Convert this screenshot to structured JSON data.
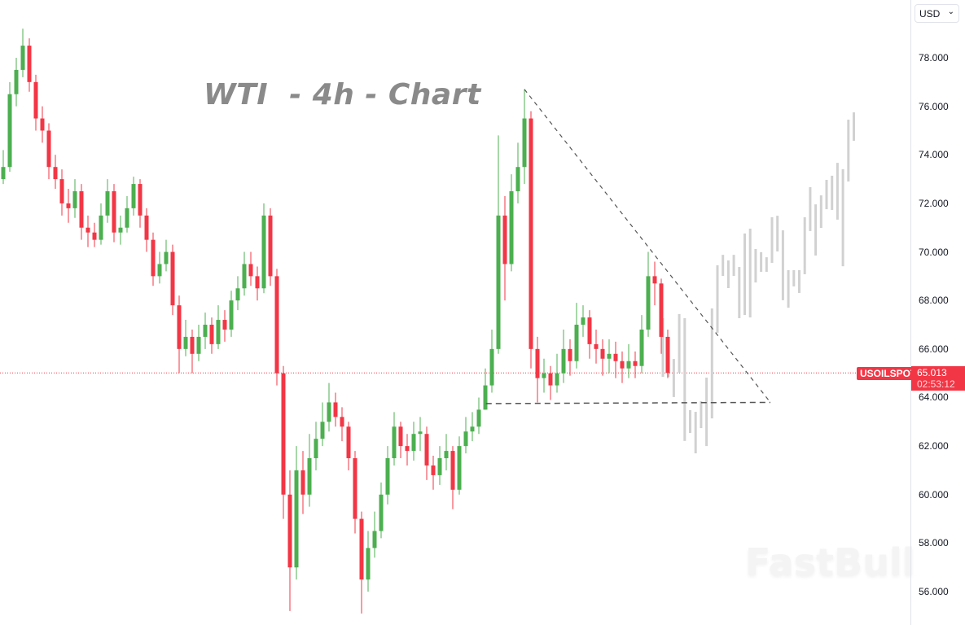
{
  "title": "WTI  - 4h - Chart",
  "watermark": "FastBull",
  "currency_selector": {
    "value": "USD"
  },
  "symbol": "USOILSPOT",
  "last_price": "65.013",
  "countdown": "02:53:12",
  "colors": {
    "up": "#4caf50",
    "down": "#f23645",
    "projection": "#d1d1d1",
    "trendline": "#555555",
    "price_line": "#f23645"
  },
  "chart_data": {
    "type": "candlestick",
    "title": "WTI  - 4h - Chart",
    "ylim": [
      54.8,
      80.4
    ],
    "y_ticks": [
      "78.000",
      "76.000",
      "74.000",
      "72.000",
      "70.000",
      "68.000",
      "66.000",
      "64.000",
      "62.000",
      "60.000",
      "58.000",
      "56.000"
    ],
    "grid": false,
    "last_price": 65.013,
    "open": [
      73.0,
      73.5,
      76.5,
      77.5,
      78.5,
      77,
      75.5,
      75,
      73.5,
      73,
      72,
      71.8,
      72.5,
      71,
      70.8,
      70.5,
      71.5,
      72.5,
      70.8,
      71,
      71.8,
      72.8,
      71.5,
      70.5,
      69,
      69.5,
      70,
      67.8,
      66,
      66.5,
      65.8,
      66.5,
      67,
      66.2,
      67.2,
      66.8,
      68,
      68.5,
      69.5,
      69,
      68.5,
      71.5,
      69,
      65,
      60,
      57,
      61,
      60,
      61.5,
      62.3,
      63,
      63.8,
      63.2,
      62.8,
      61.5,
      59,
      56.5,
      57.8,
      58.5,
      60,
      61.5,
      62.8,
      62,
      61.8,
      62.5,
      62.5,
      61.2,
      60.8,
      61.5,
      61.8,
      60.2,
      62,
      62.6,
      62.8,
      63.5,
      64.5,
      66,
      71.5,
      69.5,
      72.5,
      73.5,
      75.5,
      66,
      64.8,
      65,
      64.5,
      65,
      66,
      65.5,
      67,
      67.3,
      66.2,
      66,
      65.6,
      65.8,
      65.5,
      65.2,
      65.5,
      65.3,
      66.8,
      69,
      68.7,
      66.5
    ],
    "high": [
      74.2,
      77.0,
      78.0,
      79.2,
      78.8,
      77.3,
      76.0,
      75.3,
      74.0,
      73.4,
      72.6,
      73.0,
      72.8,
      71.5,
      71.2,
      72.0,
      73.0,
      72.8,
      71.5,
      72.3,
      73.1,
      73.0,
      71.8,
      70.8,
      70.0,
      70.5,
      70.3,
      68.2,
      67.2,
      66.8,
      67.0,
      67.5,
      67.3,
      67.8,
      67.6,
      68.4,
      69.0,
      70.0,
      70.0,
      69.4,
      72.0,
      71.8,
      69.3,
      65.3,
      61.0,
      62.0,
      61.8,
      62.5,
      63.0,
      63.8,
      64.6,
      64.2,
      63.6,
      63.0,
      61.8,
      59.3,
      58.5,
      59.3,
      60.5,
      62.0,
      63.4,
      63.0,
      62.5,
      63.0,
      63.2,
      62.8,
      61.6,
      62.0,
      62.5,
      62.0,
      62.4,
      63.2,
      63.4,
      64.0,
      65.2,
      66.8,
      74.8,
      72.3,
      73.2,
      74.5,
      76.7,
      75.8,
      66.5,
      65.6,
      65.3,
      65.8,
      66.8,
      66.4,
      67.9,
      67.8,
      67.6,
      66.8,
      66.4,
      66.4,
      66.3,
      65.9,
      66.2,
      65.9,
      67.4,
      70.0,
      69.6,
      68.9,
      66.8
    ],
    "low": [
      72.8,
      73.3,
      76.0,
      77.2,
      76.6,
      75.0,
      74.5,
      73.0,
      72.6,
      71.5,
      71.2,
      71.4,
      70.5,
      70.2,
      70.2,
      70.3,
      71.2,
      70.4,
      70.3,
      70.8,
      71.5,
      71.0,
      70.0,
      68.6,
      68.7,
      69.2,
      67.4,
      65.0,
      65.7,
      65.0,
      65.5,
      66.0,
      65.8,
      66.0,
      66.3,
      66.5,
      67.6,
      68.2,
      68.6,
      68.0,
      68.3,
      68.6,
      64.5,
      59.0,
      55.2,
      56.5,
      59.2,
      59.5,
      61.0,
      62.0,
      62.6,
      62.8,
      62.2,
      61.0,
      58.4,
      55.1,
      56.0,
      57.4,
      58.2,
      59.6,
      61.2,
      61.5,
      61.2,
      61.4,
      61.8,
      60.6,
      60.2,
      60.4,
      61.0,
      59.4,
      60.0,
      61.7,
      62.2,
      62.5,
      63.5,
      64.2,
      65.8,
      68.0,
      69.2,
      72.0,
      72.8,
      65.2,
      63.8,
      64.2,
      63.9,
      64.2,
      64.6,
      64.9,
      65.2,
      66.5,
      65.6,
      65.4,
      64.9,
      65.0,
      64.8,
      64.6,
      64.8,
      64.8,
      65.0,
      66.5,
      67.8,
      65.8,
      64.8
    ],
    "close": [
      73.5,
      76.5,
      77.5,
      78.5,
      77,
      75.5,
      75,
      73.5,
      73,
      72,
      71.8,
      72.5,
      71,
      70.8,
      70.5,
      71.5,
      72.5,
      70.8,
      71,
      71.8,
      72.8,
      71.5,
      70.5,
      69,
      69.5,
      70,
      67.8,
      66,
      66.5,
      65.8,
      66.5,
      67,
      66.2,
      67.2,
      66.8,
      68,
      68.5,
      69.5,
      69,
      68.5,
      71.5,
      69,
      65,
      60,
      57,
      61,
      60,
      61.5,
      62.3,
      63,
      63.8,
      63.2,
      62.8,
      61.5,
      59,
      56.5,
      57.8,
      58.5,
      60,
      61.5,
      62.8,
      62,
      61.8,
      62.5,
      62.6,
      61.2,
      60.8,
      61.5,
      61.8,
      60.2,
      62,
      62.6,
      62.8,
      63.5,
      64.5,
      66,
      71.5,
      69.5,
      72.5,
      73.5,
      75.5,
      66,
      64.8,
      65,
      64.5,
      65,
      66,
      65.5,
      67,
      67.3,
      66.2,
      66,
      65.6,
      65.8,
      65.5,
      65.2,
      65.5,
      65.3,
      66.8,
      69,
      68.7,
      66.5,
      65.013
    ],
    "projection_bars": [
      [
        67.27,
        64.85
      ],
      [
        66.43,
        64.85
      ],
      [
        65.59,
        64.02
      ],
      [
        67.44,
        65.02
      ],
      [
        67.27,
        62.21
      ],
      [
        63.48,
        62.54
      ],
      [
        63.41,
        61.7
      ],
      [
        63.85,
        62.74
      ],
      [
        64.82,
        62.0
      ],
      [
        67.67,
        63.14
      ],
      [
        69.45,
        66.67
      ],
      [
        69.88,
        69.01
      ],
      [
        69.65,
        68.51
      ],
      [
        69.88,
        69.01
      ],
      [
        69.38,
        67.27
      ],
      [
        70.76,
        67.4
      ],
      [
        70.96,
        67.3
      ],
      [
        70.12,
        68.74
      ],
      [
        69.99,
        69.18
      ],
      [
        69.78,
        69.18
      ],
      [
        71.43,
        69.55
      ],
      [
        71.49,
        70.02
      ],
      [
        70.89,
        68.01
      ],
      [
        69.25,
        67.7
      ],
      [
        69.25,
        68.58
      ],
      [
        69.25,
        68.31
      ],
      [
        71.43,
        69.08
      ],
      [
        72.67,
        70.86
      ],
      [
        71.96,
        69.85
      ],
      [
        72.33,
        70.99
      ],
      [
        72.97,
        71.76
      ],
      [
        73.14,
        71.73
      ],
      [
        73.67,
        71.33
      ],
      [
        73.41,
        69.41
      ],
      [
        75.45,
        72.9
      ],
      [
        75.75,
        74.58
      ]
    ],
    "drawings": {
      "descending_trendline": [
        {
          "bar": 80,
          "price": 76.7
        },
        {
          "bar": 117.75,
          "price": 63.8
        }
      ],
      "horizontal_support": [
        {
          "bar": 74.1,
          "price": 63.75
        },
        {
          "bar": 117.75,
          "price": 63.8
        }
      ]
    }
  }
}
